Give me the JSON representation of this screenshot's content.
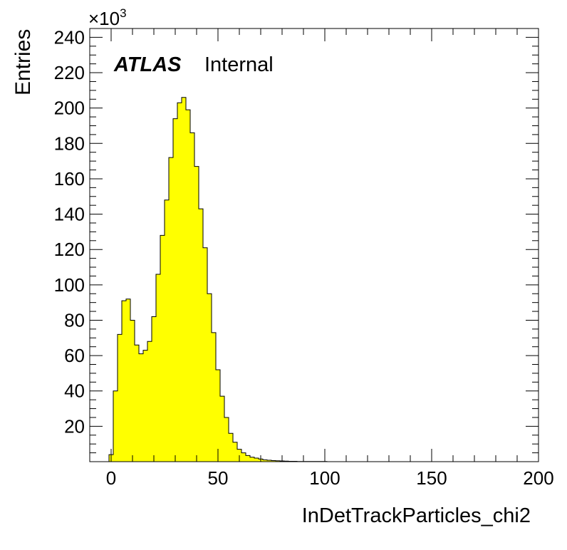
{
  "chart_data": {
    "type": "bar",
    "title": "",
    "xlabel": "InDetTrackParticles_chi2",
    "ylabel": "Entries",
    "y_multiplier_label": "×10",
    "y_multiplier_exponent": "3",
    "xlim": [
      -10,
      200
    ],
    "ylim": [
      0,
      245
    ],
    "x_ticks": [
      0,
      50,
      100,
      150,
      200
    ],
    "y_ticks": [
      20,
      40,
      60,
      80,
      100,
      120,
      140,
      160,
      180,
      200,
      220,
      240
    ],
    "bin_width": 2,
    "bin_start": -1,
    "values": [
      4,
      40,
      72,
      91,
      92,
      80,
      66,
      61,
      63,
      68,
      82,
      106,
      128,
      148,
      172,
      194,
      203,
      206,
      199,
      186,
      167,
      143,
      121,
      95,
      73,
      52,
      37,
      25,
      16,
      11,
      7,
      5,
      3.5,
      2.5,
      2,
      1.5,
      1,
      0.8,
      0.6,
      0.5,
      0.4,
      0.3,
      0.2,
      0.2,
      0.1,
      0.1,
      0.1,
      0.1,
      0.1,
      0.1,
      0.1
    ],
    "fill_color": "#ffff00",
    "line_color": "#000000",
    "grid": false,
    "legend": "none",
    "annotation": {
      "experiment": "ATLAS",
      "status": "Internal"
    }
  }
}
